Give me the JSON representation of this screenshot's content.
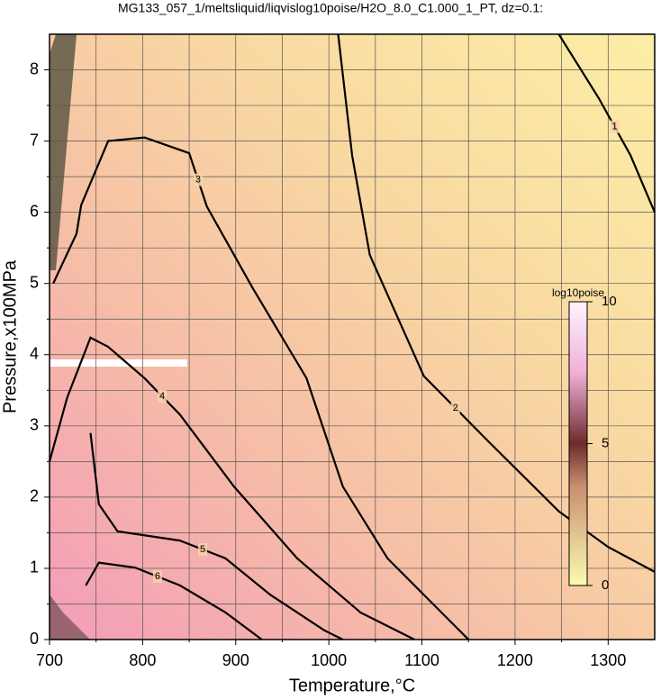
{
  "chart_data": {
    "type": "contour",
    "title": "MG133_057_1/meltsliquid/liqvislog10poise/H2O_8.0_C1.000_1_PT, dz=0.1:",
    "x_label": "Temperature,°C",
    "y_label": "Pressure,x100MPa",
    "xlim": [
      700,
      1350
    ],
    "ylim": [
      0,
      8.5
    ],
    "xticks": [
      700,
      800,
      900,
      1000,
      1100,
      1200,
      1300
    ],
    "yticks": [
      0,
      1,
      2,
      3,
      4,
      5,
      6,
      7,
      8
    ],
    "minor_xticks": [
      750,
      850,
      950,
      1050,
      1150,
      1250
    ],
    "minor_yticks": [
      0.5,
      1.5,
      2.5,
      3.5,
      4.5,
      5.5,
      6.5,
      7.5
    ],
    "grid": true,
    "contours": [
      {
        "level": 1,
        "x": [
          1247,
          1290,
          1324,
          1350
        ],
        "y": [
          8.5,
          7.6,
          6.8,
          6.0
        ]
      },
      {
        "level": 2,
        "x": [
          1010,
          1025,
          1044,
          1102,
          1170,
          1247,
          1300,
          1350
        ],
        "y": [
          8.5,
          6.8,
          5.4,
          3.7,
          2.8,
          1.8,
          1.3,
          0.95
        ]
      },
      {
        "level": 3,
        "x": [
          704,
          729,
          734,
          763,
          802,
          850,
          869,
          918,
          976,
          1015,
          1063,
          1150
        ],
        "y": [
          5.0,
          5.7,
          6.1,
          7.0,
          7.05,
          6.83,
          6.08,
          4.94,
          3.67,
          2.15,
          1.14,
          0
        ]
      },
      {
        "level": 4,
        "x": [
          700,
          719,
          744,
          763,
          802,
          840,
          898,
          966,
          1034,
          1092
        ],
        "y": [
          2.5,
          3.4,
          4.24,
          4.11,
          3.67,
          3.16,
          2.15,
          1.14,
          0.38,
          0
        ]
      },
      {
        "level": 5,
        "x": [
          744,
          753,
          773,
          840,
          889,
          937,
          995,
          1015
        ],
        "y": [
          2.9,
          1.9,
          1.52,
          1.39,
          1.14,
          0.63,
          0.13,
          0
        ]
      },
      {
        "level": 6,
        "x": [
          739,
          753,
          792,
          840,
          889,
          928
        ],
        "y": [
          0.76,
          1.08,
          1.01,
          0.76,
          0.38,
          0
        ]
      }
    ],
    "colorbar": {
      "label": "log10poise",
      "lim": [
        0,
        10
      ],
      "ticks": [
        0,
        5,
        10
      ]
    }
  }
}
